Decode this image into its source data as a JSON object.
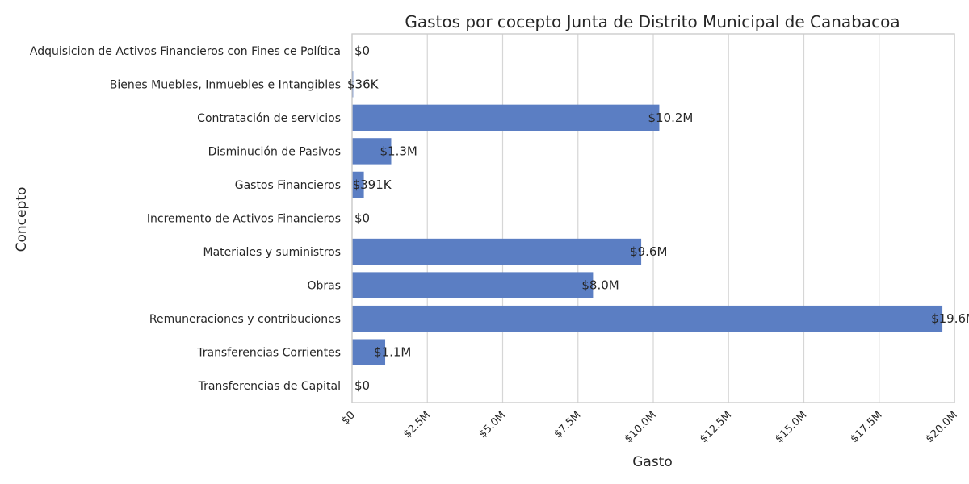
{
  "chart_data": {
    "type": "bar",
    "orientation": "horizontal",
    "title": "Gastos por cocepto Junta de Distrito Municipal de Canabacoa",
    "xlabel": "Gasto",
    "ylabel": "Concepto",
    "bar_color": "#5b7ec3",
    "grid": "vertical",
    "xlim": [
      0,
      20000000
    ],
    "x_ticks": [
      0,
      2500000,
      5000000,
      7500000,
      10000000,
      12500000,
      15000000,
      17500000,
      20000000
    ],
    "x_tick_labels": [
      "$0",
      "$2.5M",
      "$5.0M",
      "$7.5M",
      "$10.0M",
      "$12.5M",
      "$15.0M",
      "$17.5M",
      "$20.0M"
    ],
    "categories": [
      "Adquisicion de Activos Financieros con Fines ce Política",
      "Bienes Muebles, Inmuebles e Intangibles",
      "Contratación de servicios",
      "Disminución de Pasivos",
      "Gastos Financieros",
      "Incremento de Activos Financieros",
      "Materiales y suministros",
      "Obras",
      "Remuneraciones y contribuciones",
      "Transferencias Corrientes",
      "Transferencias de Capital"
    ],
    "values": [
      0,
      36000,
      10200000,
      1300000,
      391000,
      0,
      9600000,
      8000000,
      19600000,
      1100000,
      0
    ],
    "data_labels": [
      "$0",
      "$36K",
      "$10.2M",
      "$1.3M",
      "$391K",
      "$0",
      "$9.6M",
      "$8.0M",
      "$19.6M",
      "$1.1M",
      "$0"
    ]
  }
}
